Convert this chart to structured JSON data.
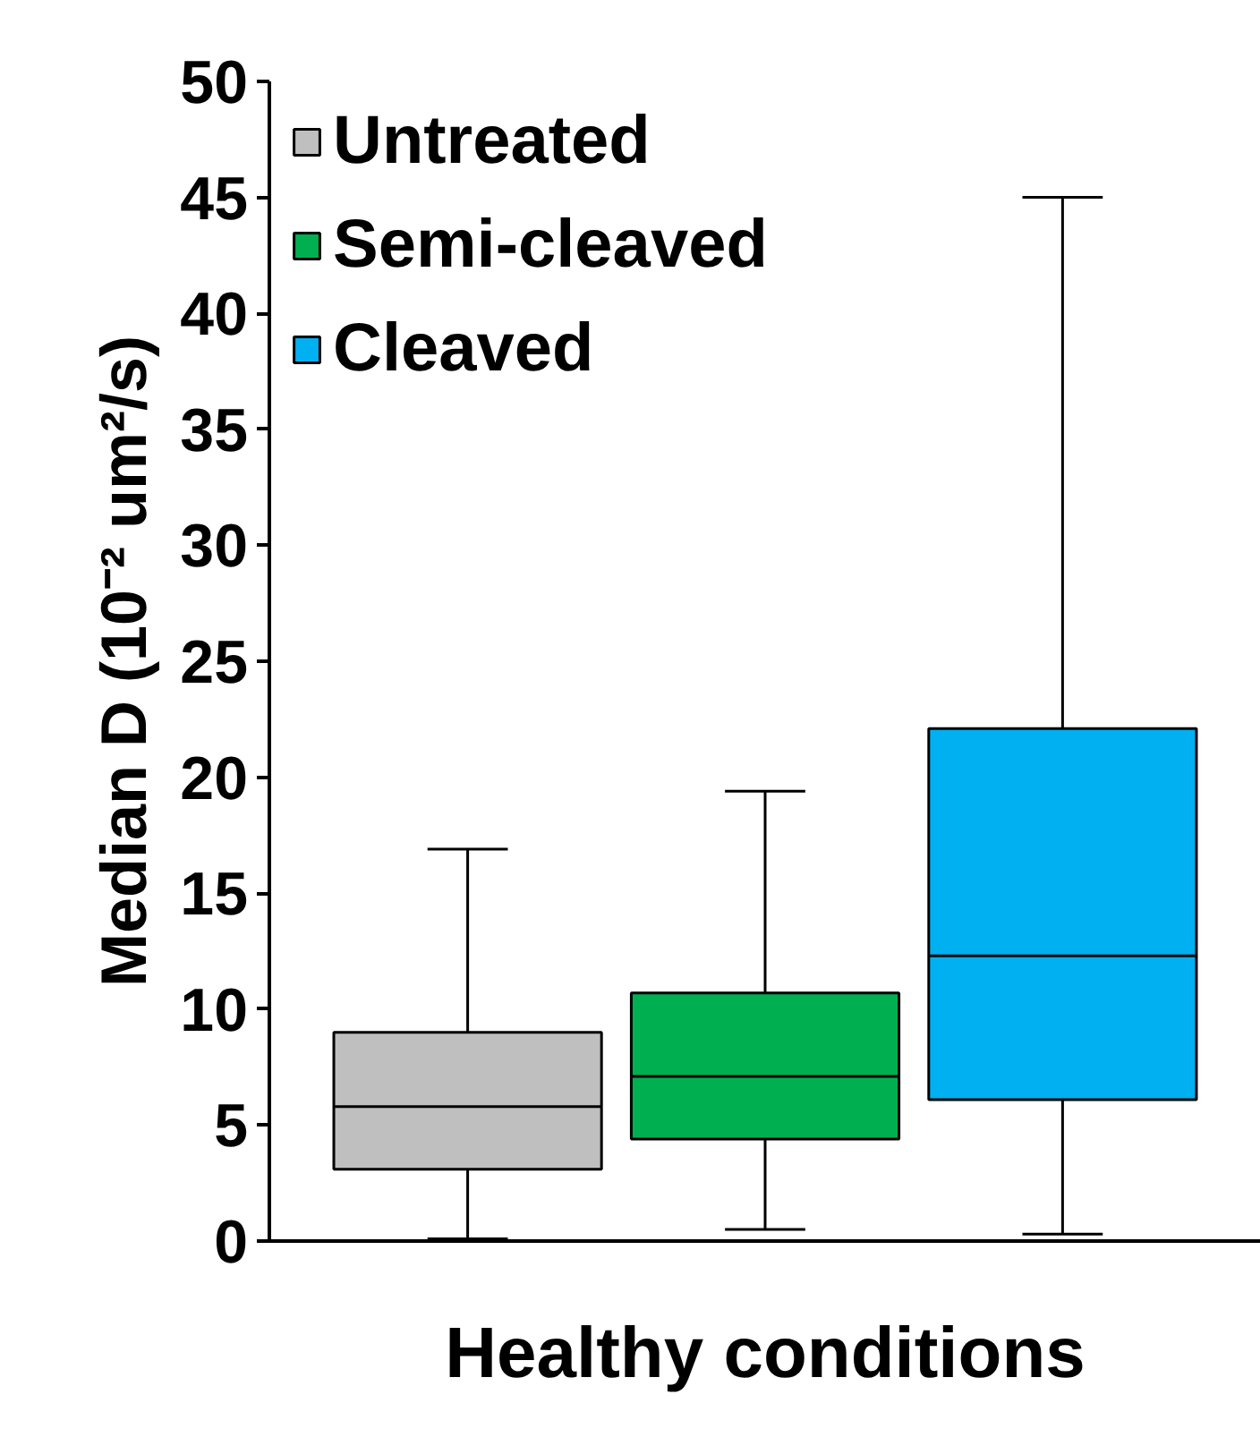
{
  "chart_data": {
    "type": "box",
    "xlabel": "Healthy conditions",
    "ylabel": "Median D (10⁻² um²/s)",
    "categories": [
      null
    ],
    "ylim": [
      0,
      50
    ],
    "yticks": [
      0,
      5,
      10,
      15,
      20,
      25,
      30,
      35,
      40,
      45,
      50
    ],
    "tick_labels": "y",
    "grid": false,
    "legend": "top left",
    "series": [
      {
        "name": "Untreated",
        "color": "#bfbfbf",
        "boxes": [
          {
            "low": 0.1,
            "q1": 3.1,
            "median": 5.8,
            "q3": 9.0,
            "high": 16.9
          }
        ]
      },
      {
        "name": "Semi-cleaved",
        "color": "#00b050",
        "boxes": [
          {
            "low": 0.5,
            "q1": 4.4,
            "median": 7.1,
            "q3": 10.7,
            "high": 19.4
          }
        ]
      },
      {
        "name": "Cleaved",
        "color": "#00b0f0",
        "boxes": [
          {
            "low": 0.3,
            "q1": 6.1,
            "median": 12.3,
            "q3": 22.1,
            "high": 45.0
          }
        ]
      }
    ]
  }
}
